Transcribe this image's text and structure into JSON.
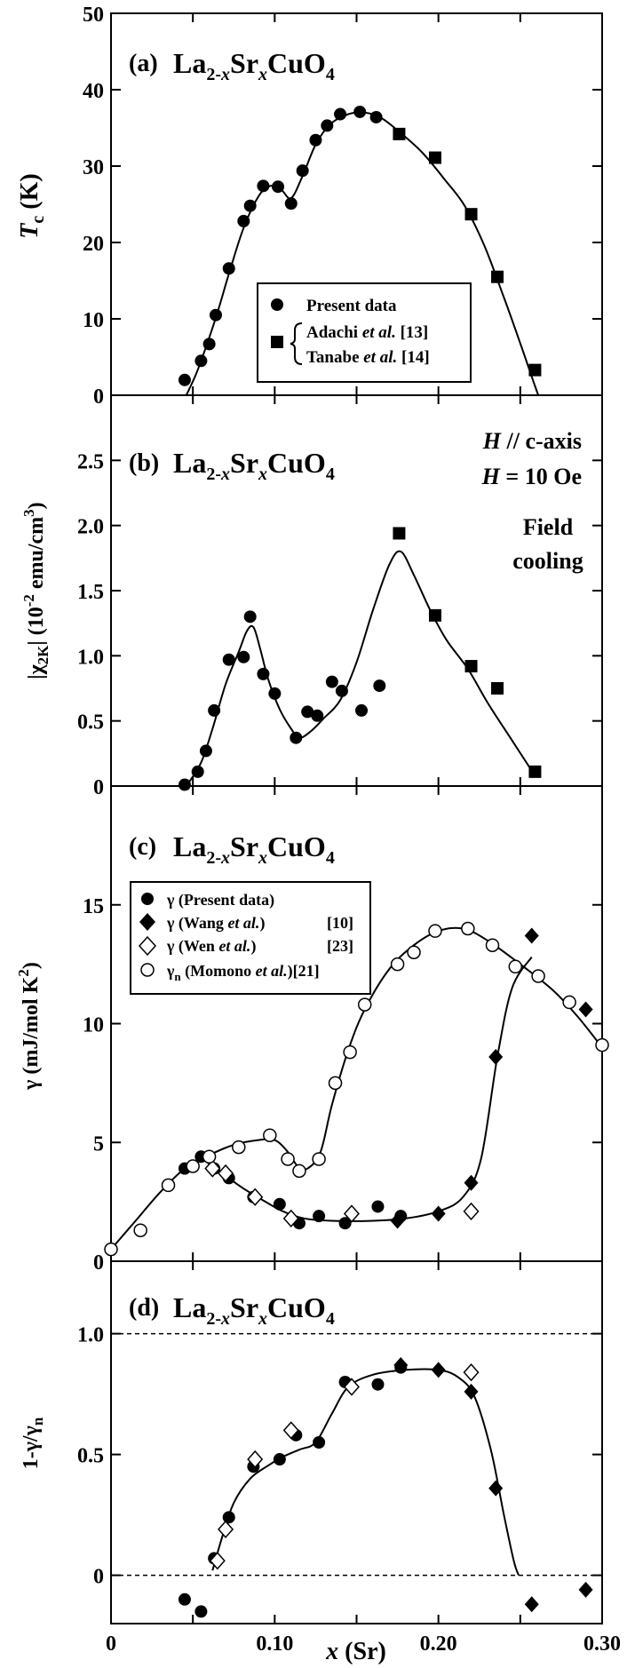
{
  "chart_data": [
    {
      "panel": "a",
      "type": "scatter",
      "panel_label": "(a)",
      "compound": {
        "base": "La",
        "sub1": "2-",
        "subx1": "x",
        "mid": "Sr",
        "subx2": "x",
        "end": "CuO",
        "sub2": "4"
      },
      "ylabel": {
        "main": "T",
        "sub": "c",
        "unit": " (K)"
      },
      "xlim": [
        0,
        0.3
      ],
      "ylim": [
        0,
        50
      ],
      "yticks": [
        0,
        10,
        20,
        30,
        40,
        50
      ],
      "ytick_labels": [
        "0",
        "10",
        "20",
        "30",
        "40",
        "50"
      ],
      "legend": {
        "present": "Present data",
        "adachi_name": "Adachi ",
        "adachi_etal": "et al.",
        "adachi_ref": " [13]",
        "tanabe_name": "Tanabe ",
        "tanabe_etal": "et al.",
        "tanabe_ref": " [14]"
      },
      "series": [
        {
          "name": "Present data",
          "marker": "circle-filled",
          "points": [
            [
              0.045,
              2.0
            ],
            [
              0.055,
              4.5
            ],
            [
              0.06,
              6.7
            ],
            [
              0.064,
              10.5
            ],
            [
              0.072,
              16.6
            ],
            [
              0.081,
              22.8
            ],
            [
              0.085,
              24.8
            ],
            [
              0.093,
              27.4
            ],
            [
              0.102,
              27.3
            ],
            [
              0.11,
              25.1
            ],
            [
              0.117,
              29.4
            ],
            [
              0.125,
              33.4
            ],
            [
              0.132,
              35.3
            ],
            [
              0.14,
              36.8
            ],
            [
              0.152,
              37.1
            ],
            [
              0.162,
              36.4
            ]
          ]
        },
        {
          "name": "Adachi / Tanabe",
          "marker": "square-filled",
          "points": [
            [
              0.176,
              34.2
            ],
            [
              0.198,
              31.1
            ],
            [
              0.22,
              23.7
            ],
            [
              0.236,
              15.5
            ],
            [
              0.259,
              3.3
            ]
          ]
        }
      ],
      "curve": [
        [
          0.046,
          0
        ],
        [
          0.052,
          2.8
        ],
        [
          0.058,
          6.3
        ],
        [
          0.065,
          10.8
        ],
        [
          0.073,
          16.6
        ],
        [
          0.081,
          21.9
        ],
        [
          0.09,
          26.0
        ],
        [
          0.097,
          27.4
        ],
        [
          0.104,
          26.9
        ],
        [
          0.11,
          25.8
        ],
        [
          0.117,
          28.7
        ],
        [
          0.125,
          32.8
        ],
        [
          0.134,
          35.5
        ],
        [
          0.145,
          36.8
        ],
        [
          0.155,
          37.0
        ],
        [
          0.165,
          36.3
        ],
        [
          0.176,
          34.5
        ],
        [
          0.19,
          31.8
        ],
        [
          0.204,
          28.2
        ],
        [
          0.216,
          24.8
        ],
        [
          0.228,
          19.6
        ],
        [
          0.24,
          12.8
        ],
        [
          0.25,
          6.8
        ],
        [
          0.258,
          1.8
        ],
        [
          0.261,
          0
        ]
      ]
    },
    {
      "panel": "b",
      "type": "scatter",
      "panel_label": "(b)",
      "compound": {
        "base": "La",
        "sub1": "2-",
        "subx1": "x",
        "mid": "Sr",
        "subx2": "x",
        "end": "CuO",
        "sub2": "4"
      },
      "ylabel": {
        "pre": "|χ",
        "sub": "2K",
        "mid": "| (10",
        "sup": "-2",
        "unit": " emu/cm",
        "sup2": "3",
        "end": ")"
      },
      "xlim": [
        0,
        0.3
      ],
      "ylim": [
        0,
        3.0
      ],
      "yticks": [
        0,
        0.5,
        1.0,
        1.5,
        2.0,
        2.5
      ],
      "ytick_labels": [
        "0",
        "0.5",
        "1.0",
        "1.5",
        "2.0",
        "2.5"
      ],
      "annotations": {
        "field_dir_h": "H",
        "field_dir_rest": " // c-axis",
        "field_val_h": "H",
        "field_val_rest": " = 10 Oe",
        "cooling_line1": "Field",
        "cooling_line2": "cooling"
      },
      "series": [
        {
          "name": "Present data",
          "marker": "circle-filled",
          "points": [
            [
              0.045,
              0.01
            ],
            [
              0.053,
              0.11
            ],
            [
              0.058,
              0.27
            ],
            [
              0.063,
              0.58
            ],
            [
              0.072,
              0.97
            ],
            [
              0.081,
              0.99
            ],
            [
              0.085,
              1.3
            ],
            [
              0.093,
              0.86
            ],
            [
              0.1,
              0.71
            ],
            [
              0.113,
              0.37
            ],
            [
              0.12,
              0.57
            ],
            [
              0.126,
              0.54
            ],
            [
              0.135,
              0.8
            ],
            [
              0.141,
              0.73
            ],
            [
              0.153,
              0.58
            ],
            [
              0.164,
              0.77
            ]
          ]
        },
        {
          "name": "Adachi / Tanabe",
          "marker": "square-filled",
          "points": [
            [
              0.176,
              1.94
            ],
            [
              0.198,
              1.31
            ],
            [
              0.22,
              0.92
            ],
            [
              0.236,
              0.75
            ],
            [
              0.259,
              0.11
            ]
          ]
        }
      ],
      "curve": [
        [
          0.046,
          0
        ],
        [
          0.055,
          0.18
        ],
        [
          0.062,
          0.44
        ],
        [
          0.07,
          0.78
        ],
        [
          0.078,
          1.03
        ],
        [
          0.083,
          1.19
        ],
        [
          0.087,
          1.22
        ],
        [
          0.091,
          1.06
        ],
        [
          0.096,
          0.82
        ],
        [
          0.103,
          0.59
        ],
        [
          0.11,
          0.44
        ],
        [
          0.115,
          0.37
        ],
        [
          0.122,
          0.42
        ],
        [
          0.13,
          0.52
        ],
        [
          0.14,
          0.66
        ],
        [
          0.15,
          0.95
        ],
        [
          0.16,
          1.35
        ],
        [
          0.17,
          1.7
        ],
        [
          0.177,
          1.8
        ],
        [
          0.185,
          1.62
        ],
        [
          0.195,
          1.35
        ],
        [
          0.205,
          1.12
        ],
        [
          0.218,
          0.9
        ],
        [
          0.23,
          0.64
        ],
        [
          0.245,
          0.35
        ],
        [
          0.259,
          0.08
        ]
      ]
    },
    {
      "panel": "c",
      "type": "scatter",
      "panel_label": "(c)",
      "compound": {
        "base": "La",
        "sub1": "2-",
        "subx1": "x",
        "mid": "Sr",
        "subx2": "x",
        "end": "CuO",
        "sub2": "4"
      },
      "ylabel": {
        "main": "γ (mJ/mol K",
        "sup": "2",
        "end": ")"
      },
      "xlim": [
        0,
        0.3
      ],
      "ylim": [
        0,
        20
      ],
      "yticks": [
        0,
        5,
        10,
        15
      ],
      "ytick_labels": [
        "0",
        "5",
        "10",
        "15"
      ],
      "legend": [
        {
          "sym": "γ",
          "sub": "",
          "text": " (Present data)",
          "etal": "",
          "ref": ""
        },
        {
          "sym": "γ",
          "sub": "",
          "text": " (Wang ",
          "etal": "et al.",
          "close": ")",
          "ref": "[10]"
        },
        {
          "sym": "γ",
          "sub": "",
          "text": " (Wen ",
          "etal": "et al.",
          "close": ")",
          "ref": "[23]"
        },
        {
          "sym": "γ",
          "sub": "n",
          "text": " (Momono ",
          "etal": "et al.",
          "close": ")",
          "ref": "[21]"
        }
      ],
      "series": [
        {
          "name": "Present data",
          "marker": "circle-filled",
          "points": [
            [
              0.045,
              3.9
            ],
            [
              0.055,
              4.4
            ],
            [
              0.063,
              3.9
            ],
            [
              0.072,
              3.5
            ],
            [
              0.087,
              2.7
            ],
            [
              0.103,
              2.4
            ],
            [
              0.115,
              1.6
            ],
            [
              0.127,
              1.9
            ],
            [
              0.143,
              1.6
            ],
            [
              0.163,
              2.3
            ],
            [
              0.177,
              1.9
            ]
          ]
        },
        {
          "name": "Wang et al.",
          "marker": "diamond-filled",
          "points": [
            [
              0.175,
              1.7
            ],
            [
              0.2,
              2.0
            ],
            [
              0.22,
              3.3
            ],
            [
              0.235,
              8.6
            ],
            [
              0.257,
              13.7
            ],
            [
              0.29,
              10.6
            ]
          ]
        },
        {
          "name": "Wen et al.",
          "marker": "diamond-open",
          "points": [
            [
              0.062,
              3.9
            ],
            [
              0.07,
              3.7
            ],
            [
              0.088,
              2.7
            ],
            [
              0.11,
              1.8
            ],
            [
              0.147,
              2.0
            ],
            [
              0.22,
              2.1
            ]
          ]
        },
        {
          "name": "Momono et al.",
          "marker": "circle-open",
          "points": [
            [
              0.0,
              0.5
            ],
            [
              0.018,
              1.3
            ],
            [
              0.035,
              3.2
            ],
            [
              0.05,
              4.0
            ],
            [
              0.06,
              4.4
            ],
            [
              0.078,
              4.8
            ],
            [
              0.097,
              5.3
            ],
            [
              0.108,
              4.3
            ],
            [
              0.115,
              3.8
            ],
            [
              0.127,
              4.3
            ],
            [
              0.137,
              7.5
            ],
            [
              0.146,
              8.8
            ],
            [
              0.155,
              10.8
            ],
            [
              0.175,
              12.5
            ],
            [
              0.185,
              13.0
            ],
            [
              0.198,
              13.9
            ],
            [
              0.218,
              14.0
            ],
            [
              0.233,
              13.3
            ],
            [
              0.247,
              12.4
            ],
            [
              0.261,
              12.0
            ],
            [
              0.28,
              10.9
            ],
            [
              0.3,
              9.1
            ]
          ]
        }
      ],
      "curves": [
        [
          [
            0.0,
            0.5
          ],
          [
            0.015,
            1.7
          ],
          [
            0.03,
            2.9
          ],
          [
            0.045,
            3.9
          ],
          [
            0.058,
            4.4
          ],
          [
            0.075,
            4.9
          ],
          [
            0.09,
            5.1
          ],
          [
            0.1,
            5.1
          ],
          [
            0.108,
            4.6
          ],
          [
            0.114,
            4.0
          ],
          [
            0.12,
            3.9
          ],
          [
            0.128,
            4.6
          ],
          [
            0.135,
            6.6
          ],
          [
            0.145,
            8.9
          ],
          [
            0.155,
            10.6
          ],
          [
            0.17,
            12.3
          ],
          [
            0.185,
            13.3
          ],
          [
            0.2,
            13.9
          ],
          [
            0.215,
            14.0
          ],
          [
            0.23,
            13.5
          ],
          [
            0.25,
            12.5
          ],
          [
            0.27,
            11.4
          ],
          [
            0.285,
            10.3
          ],
          [
            0.3,
            9.0
          ]
        ],
        [
          [
            0.058,
            4.2
          ],
          [
            0.068,
            3.7
          ],
          [
            0.08,
            3.1
          ],
          [
            0.092,
            2.6
          ],
          [
            0.105,
            2.1
          ],
          [
            0.118,
            1.8
          ],
          [
            0.135,
            1.7
          ],
          [
            0.16,
            1.7
          ],
          [
            0.18,
            1.8
          ],
          [
            0.2,
            2.1
          ],
          [
            0.215,
            2.7
          ],
          [
            0.226,
            4.3
          ],
          [
            0.236,
            8.6
          ],
          [
            0.245,
            11.5
          ],
          [
            0.257,
            12.8
          ]
        ]
      ]
    },
    {
      "panel": "d",
      "type": "scatter",
      "panel_label": "(d)",
      "compound": {
        "base": "La",
        "sub1": "2-",
        "subx1": "x",
        "mid": "Sr",
        "subx2": "x",
        "end": "CuO",
        "sub2": "4"
      },
      "ylabel": {
        "main": "1-γ/γ",
        "sub": "n"
      },
      "xlim": [
        0,
        0.3
      ],
      "ylim": [
        -0.2,
        1.3
      ],
      "yticks": [
        0,
        0.5,
        1.0
      ],
      "ytick_labels": [
        "0",
        "0.5",
        "1.0"
      ],
      "reference_lines": [
        0,
        1.0
      ],
      "xticks": [
        0,
        0.1,
        0.2,
        0.3
      ],
      "xtick_labels": [
        "0",
        "0.10",
        "0.20",
        "0.30"
      ],
      "xlabel": {
        "main": "x",
        "unit": " (Sr)"
      },
      "series": [
        {
          "name": "Present data",
          "marker": "circle-filled",
          "points": [
            [
              0.045,
              -0.1
            ],
            [
              0.055,
              -0.15
            ],
            [
              0.063,
              0.07
            ],
            [
              0.072,
              0.24
            ],
            [
              0.087,
              0.45
            ],
            [
              0.103,
              0.48
            ],
            [
              0.113,
              0.58
            ],
            [
              0.127,
              0.55
            ],
            [
              0.143,
              0.8
            ],
            [
              0.163,
              0.79
            ],
            [
              0.177,
              0.86
            ]
          ]
        },
        {
          "name": "Wang et al.",
          "marker": "diamond-filled",
          "points": [
            [
              0.177,
              0.87
            ],
            [
              0.2,
              0.85
            ],
            [
              0.22,
              0.76
            ],
            [
              0.235,
              0.36
            ],
            [
              0.257,
              -0.12
            ],
            [
              0.29,
              -0.06
            ]
          ]
        },
        {
          "name": "Wen et al.",
          "marker": "diamond-open",
          "points": [
            [
              0.065,
              0.06
            ],
            [
              0.07,
              0.19
            ],
            [
              0.088,
              0.48
            ],
            [
              0.11,
              0.6
            ],
            [
              0.147,
              0.78
            ],
            [
              0.22,
              0.84
            ]
          ]
        }
      ],
      "curve": [
        [
          0.062,
          0.02
        ],
        [
          0.068,
          0.16
        ],
        [
          0.075,
          0.3
        ],
        [
          0.085,
          0.4
        ],
        [
          0.095,
          0.45
        ],
        [
          0.105,
          0.49
        ],
        [
          0.115,
          0.52
        ],
        [
          0.125,
          0.55
        ],
        [
          0.135,
          0.67
        ],
        [
          0.145,
          0.78
        ],
        [
          0.16,
          0.83
        ],
        [
          0.18,
          0.85
        ],
        [
          0.2,
          0.85
        ],
        [
          0.212,
          0.82
        ],
        [
          0.222,
          0.74
        ],
        [
          0.232,
          0.52
        ],
        [
          0.24,
          0.25
        ],
        [
          0.246,
          0.06
        ],
        [
          0.249,
          0.0
        ]
      ]
    }
  ]
}
